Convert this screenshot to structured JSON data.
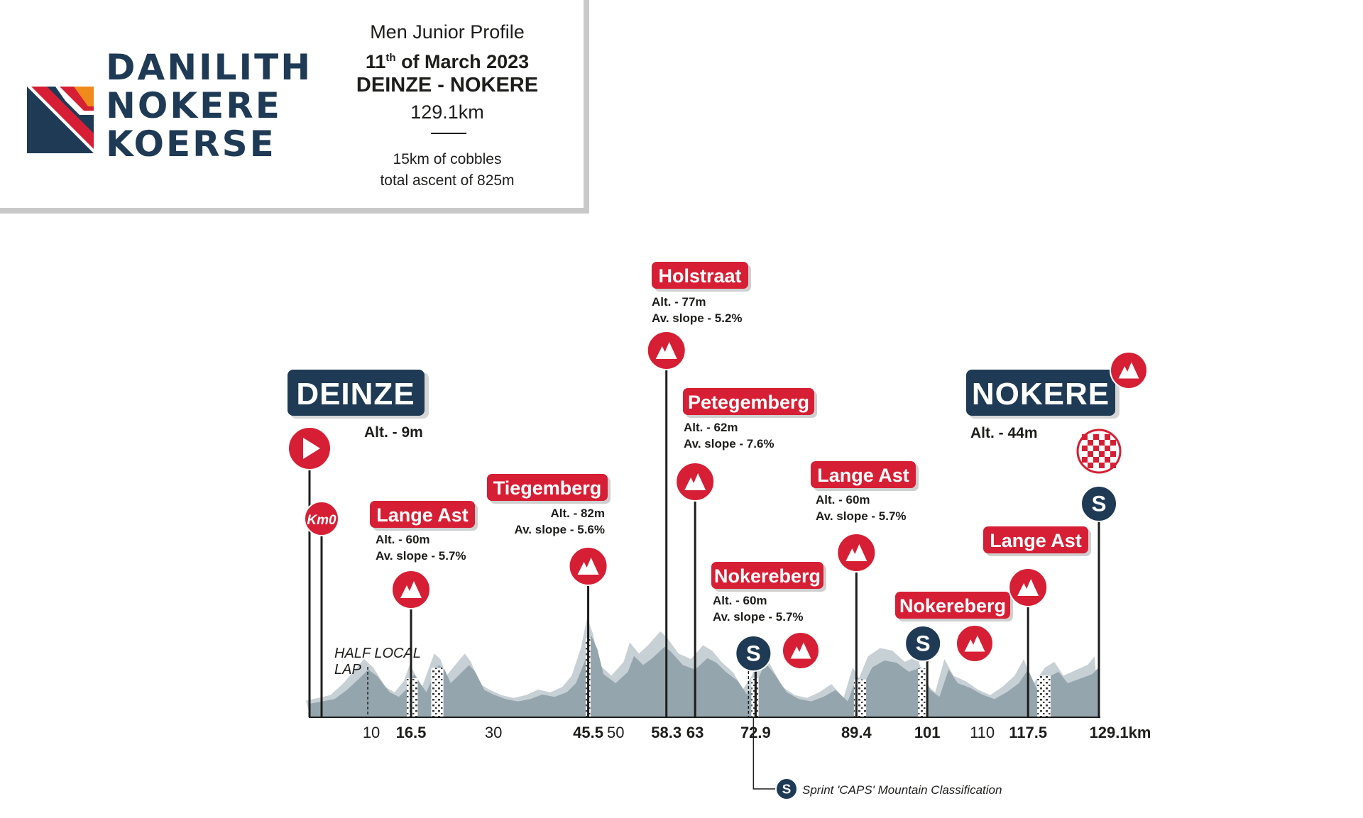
{
  "header": {
    "logo_lines": [
      "DANILITH",
      "NOKERE",
      "KOERSE"
    ],
    "profile_label": "Men Junior Profile",
    "date_day": "11",
    "date_suffix": "th",
    "date_rest": " of March 2023",
    "route": "DEINZE - NOKERE",
    "distance": "129.1km",
    "cobbles": "15km of cobbles",
    "ascent": "total ascent of 825m"
  },
  "colors": {
    "navy": "#1e3a55",
    "red": "#d61f34",
    "orange": "#f08a1c",
    "profile_dark": "#95a5ad",
    "profile_light": "#c7d0d5"
  },
  "chart_data": {
    "type": "area",
    "xlabel": "",
    "ylabel": "",
    "x_unit": "km",
    "xlim": [
      0,
      129.1
    ],
    "profile": [
      [
        0,
        12
      ],
      [
        2,
        14
      ],
      [
        4,
        16
      ],
      [
        6,
        24
      ],
      [
        8,
        34
      ],
      [
        9.5,
        42
      ],
      [
        11,
        36
      ],
      [
        13,
        22
      ],
      [
        14.5,
        18
      ],
      [
        16,
        26
      ],
      [
        17,
        38
      ],
      [
        18,
        30
      ],
      [
        19,
        22
      ],
      [
        20,
        34
      ],
      [
        21,
        46
      ],
      [
        22,
        42
      ],
      [
        23,
        30
      ],
      [
        24.5,
        38
      ],
      [
        26,
        46
      ],
      [
        27,
        40
      ],
      [
        28.5,
        24
      ],
      [
        30,
        20
      ],
      [
        32,
        16
      ],
      [
        34,
        14
      ],
      [
        36,
        16
      ],
      [
        38,
        20
      ],
      [
        40,
        18
      ],
      [
        42,
        22
      ],
      [
        43.5,
        30
      ],
      [
        45,
        50
      ],
      [
        46,
        72
      ],
      [
        47,
        60
      ],
      [
        48,
        38
      ],
      [
        50,
        30
      ],
      [
        52,
        40
      ],
      [
        53,
        54
      ],
      [
        54.5,
        46
      ],
      [
        56,
        52
      ],
      [
        58,
        62
      ],
      [
        59,
        58
      ],
      [
        61,
        46
      ],
      [
        63,
        42
      ],
      [
        65,
        52
      ],
      [
        66.5,
        48
      ],
      [
        68,
        40
      ],
      [
        70,
        32
      ],
      [
        71.5,
        20
      ],
      [
        73,
        30
      ],
      [
        74.5,
        48
      ],
      [
        76,
        38
      ],
      [
        78,
        22
      ],
      [
        80,
        16
      ],
      [
        82,
        14
      ],
      [
        84,
        18
      ],
      [
        86,
        24
      ],
      [
        88,
        14
      ],
      [
        89.5,
        36
      ],
      [
        90.5,
        28
      ],
      [
        92,
        44
      ],
      [
        94,
        50
      ],
      [
        96,
        48
      ],
      [
        98,
        40
      ],
      [
        100,
        44
      ],
      [
        101.5,
        24
      ],
      [
        103,
        18
      ],
      [
        104.5,
        42
      ],
      [
        106,
        30
      ],
      [
        108,
        26
      ],
      [
        110,
        20
      ],
      [
        112,
        16
      ],
      [
        114,
        22
      ],
      [
        116,
        30
      ],
      [
        117.5,
        42
      ],
      [
        119,
        24
      ],
      [
        121,
        36
      ],
      [
        122.5,
        40
      ],
      [
        124,
        30
      ],
      [
        126,
        34
      ],
      [
        128,
        38
      ],
      [
        129.1,
        44
      ]
    ],
    "cobble_sections": [
      [
        15.8,
        17.6
      ],
      [
        19.8,
        21.8
      ],
      [
        45.1,
        45.9
      ],
      [
        72.2,
        73.4
      ],
      [
        89,
        91
      ],
      [
        99.5,
        100.8
      ],
      [
        119,
        121.2
      ]
    ],
    "ticks": [
      {
        "km": 10,
        "label": "10",
        "bold": false
      },
      {
        "km": 16.5,
        "label": "16.5",
        "bold": true
      },
      {
        "km": 30,
        "label": "30",
        "bold": false
      },
      {
        "km": 45.5,
        "label": "45.5",
        "bold": true
      },
      {
        "km": 50,
        "label": "50",
        "bold": false
      },
      {
        "km": 58.3,
        "label": "58.3",
        "bold": true
      },
      {
        "km": 63,
        "label": "63",
        "bold": true
      },
      {
        "km": 72.9,
        "label": "72.9",
        "bold": true
      },
      {
        "km": 89.4,
        "label": "89.4",
        "bold": true
      },
      {
        "km": 101,
        "label": "101",
        "bold": true
      },
      {
        "km": 110,
        "label": "110",
        "bold": false
      },
      {
        "km": 117.5,
        "label": "117.5",
        "bold": true
      },
      {
        "km": 129.1,
        "label": "129.1km",
        "bold": true
      }
    ],
    "climbs": [
      {
        "name": "Lange Ast",
        "km": 16.5,
        "alt": "60m",
        "slope": "5.7%"
      },
      {
        "name": "Tiegemberg",
        "km": 45.5,
        "alt": "82m",
        "slope": "5.6%"
      },
      {
        "name": "Holstraat",
        "km": 58.3,
        "alt": "77m",
        "slope": "5.2%"
      },
      {
        "name": "Petegemberg",
        "km": 63,
        "alt": "62m",
        "slope": "7.6%"
      },
      {
        "name": "Nokereberg",
        "km": 72.9,
        "alt": "60m",
        "slope": "5.7%"
      },
      {
        "name": "Lange Ast",
        "km": 89.4,
        "alt": "60m",
        "slope": "5.7%"
      },
      {
        "name": "Nokereberg",
        "km": 101,
        "alt": "",
        "slope": ""
      },
      {
        "name": "Lange Ast",
        "km": 117.5,
        "alt": "",
        "slope": ""
      }
    ],
    "start": {
      "name": "DEINZE",
      "alt": "9m"
    },
    "finish": {
      "name": "NOKERE",
      "alt": "44m"
    },
    "km0_label": "Km0",
    "lap_note": [
      "HALF LOCAL",
      "LAP"
    ],
    "stat_alt_prefix": "Alt. - ",
    "stat_slope_prefix": "Av. slope - ",
    "sprint_letter": "S",
    "legend": "Sprint 'CAPS' Mountain Classification"
  }
}
